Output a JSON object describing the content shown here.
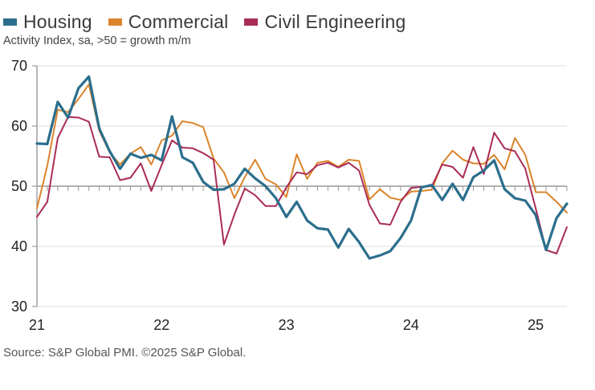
{
  "chart_data": {
    "type": "line",
    "title": "",
    "subtitle": "Activity Index, sa, >50 = growth m/m",
    "xlabel": "",
    "ylabel": "",
    "ylim": [
      30,
      70
    ],
    "yticks": [
      30,
      40,
      50,
      60,
      70
    ],
    "reference_line": 50,
    "grid": true,
    "legend_position": "top-left",
    "x_start": "2021-01",
    "x_end": "2025-04",
    "x_frequency": "monthly",
    "xtick_labels": [
      {
        "label": "21",
        "index": 0
      },
      {
        "label": "22",
        "index": 12
      },
      {
        "label": "23",
        "index": 24
      },
      {
        "label": "24",
        "index": 36
      },
      {
        "label": "25",
        "index": 48
      }
    ],
    "series": [
      {
        "name": "Housing",
        "color": "#2B6E8C",
        "values": [
          57.1,
          57.0,
          64.0,
          61.4,
          66.3,
          68.2,
          59.6,
          55.8,
          52.9,
          55.4,
          54.7,
          55.2,
          54.3,
          61.6,
          54.8,
          53.9,
          50.7,
          49.4,
          49.5,
          50.4,
          52.9,
          51.3,
          50.0,
          48.0,
          44.9,
          47.4,
          44.3,
          43.0,
          42.8,
          39.8,
          42.9,
          40.7,
          38.0,
          38.5,
          39.2,
          41.4,
          44.3,
          49.8,
          50.2,
          47.7,
          50.4,
          47.7,
          51.5,
          52.6,
          54.3,
          49.5,
          48.0,
          47.6,
          45.2,
          39.4,
          44.7,
          47.1
        ]
      },
      {
        "name": "Commercial",
        "color": "#DB842B",
        "values": [
          46.3,
          53.4,
          62.7,
          62.3,
          64.5,
          66.9,
          59.2,
          55.6,
          53.6,
          55.4,
          56.5,
          53.6,
          57.6,
          58.4,
          60.8,
          60.5,
          59.8,
          54.6,
          52.3,
          48.0,
          51.5,
          54.4,
          51.2,
          50.3,
          48.2,
          55.3,
          51.2,
          53.9,
          54.2,
          53.2,
          54.4,
          54.2,
          47.8,
          49.5,
          48.1,
          47.7,
          49.1,
          49.2,
          49.4,
          53.8,
          55.9,
          54.4,
          53.8,
          53.7,
          55.2,
          52.8,
          58.0,
          55.2,
          49.0,
          49.0,
          47.4,
          45.6
        ]
      },
      {
        "name": "Civil Engineering",
        "color": "#AA2C56",
        "values": [
          44.9,
          47.4,
          58.0,
          61.5,
          61.4,
          60.7,
          54.9,
          54.8,
          51.0,
          51.4,
          53.8,
          49.2,
          53.5,
          57.6,
          56.4,
          56.3,
          55.5,
          54.4,
          40.3,
          45.3,
          49.6,
          48.5,
          46.7,
          46.7,
          49.8,
          52.3,
          52.0,
          53.5,
          53.9,
          53.1,
          53.9,
          52.6,
          46.9,
          43.8,
          43.6,
          47.4,
          49.7,
          49.9,
          50.0,
          53.6,
          53.2,
          51.4,
          56.5,
          52.0,
          58.9,
          56.3,
          55.8,
          52.9,
          46.3,
          39.4,
          38.8,
          43.2
        ]
      }
    ]
  },
  "legend": [
    {
      "label": "Housing",
      "color": "#2B6E8C"
    },
    {
      "label": "Commercial",
      "color": "#DB842B"
    },
    {
      "label": "Civil Engineering",
      "color": "#AA2C56"
    }
  ],
  "subtitle": "Activity Index, sa, >50 = growth m/m",
  "source": "Source: S&P Global PMI. ©2025 S&P Global."
}
